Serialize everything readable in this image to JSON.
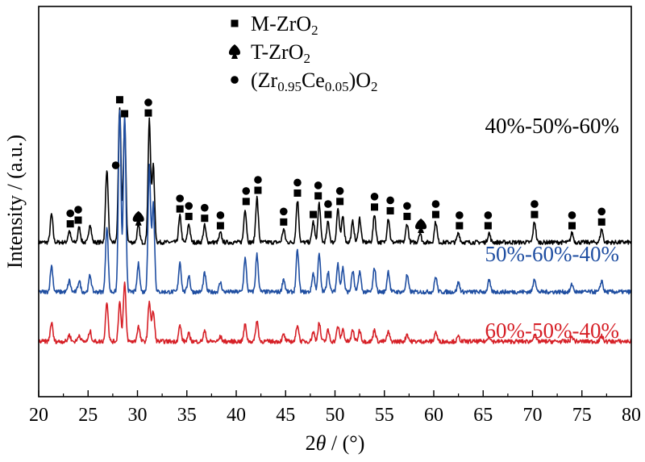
{
  "chart_data": {
    "type": "line",
    "title": "",
    "xlabel": "2θ / (°)",
    "ylabel": "Intensity / (a.u.)",
    "xlim": [
      20,
      80
    ],
    "x_ticks": [
      "20",
      "25",
      "30",
      "35",
      "40",
      "45",
      "50",
      "55",
      "60",
      "65",
      "70",
      "75",
      "80"
    ],
    "grid": false,
    "legend": {
      "position": "top-center",
      "entries": [
        {
          "marker": "square",
          "parts": [
            {
              "t": "M-ZrO",
              "s": "n"
            },
            {
              "t": "2",
              "s": "sub"
            }
          ]
        },
        {
          "marker": "spade",
          "parts": [
            {
              "t": "T-ZrO",
              "s": "n"
            },
            {
              "t": "2",
              "s": "sub"
            }
          ]
        },
        {
          "marker": "circle",
          "parts": [
            {
              "t": "(Zr",
              "s": "n"
            },
            {
              "t": "0.95",
              "s": "sub"
            },
            {
              "t": "Ce",
              "s": "n"
            },
            {
              "t": "0.05",
              "s": "sub"
            },
            {
              "t": ")O",
              "s": "n"
            },
            {
              "t": "2",
              "s": "sub"
            }
          ]
        }
      ]
    },
    "series": [
      {
        "name": "40%-50%-60%",
        "color": "#000000",
        "baseline": 0.53,
        "peaks": [
          [
            21.3,
            0.3
          ],
          [
            23.1,
            0.12
          ],
          [
            24.1,
            0.16
          ],
          [
            25.2,
            0.2
          ],
          [
            26.9,
            0.78
          ],
          [
            28.2,
            1.45
          ],
          [
            28.7,
            1.3
          ],
          [
            30.1,
            0.18
          ],
          [
            31.2,
            1.3
          ],
          [
            31.6,
            0.82
          ],
          [
            34.3,
            0.28
          ],
          [
            35.2,
            0.2
          ],
          [
            36.8,
            0.18
          ],
          [
            38.4,
            0.1
          ],
          [
            40.9,
            0.36
          ],
          [
            42.1,
            0.48
          ],
          [
            44.8,
            0.14
          ],
          [
            46.2,
            0.45
          ],
          [
            47.8,
            0.22
          ],
          [
            48.4,
            0.42
          ],
          [
            49.3,
            0.22
          ],
          [
            50.3,
            0.36
          ],
          [
            50.8,
            0.28
          ],
          [
            51.8,
            0.22
          ],
          [
            52.5,
            0.26
          ],
          [
            54.0,
            0.3
          ],
          [
            55.4,
            0.26
          ],
          [
            57.3,
            0.2
          ],
          [
            58.6,
            0.1
          ],
          [
            60.2,
            0.22
          ],
          [
            62.5,
            0.1
          ],
          [
            65.6,
            0.1
          ],
          [
            70.2,
            0.22
          ],
          [
            74.0,
            0.1
          ],
          [
            77.0,
            0.14
          ]
        ]
      },
      {
        "name": "50%-60%-40%",
        "color": "#1f4ea1",
        "baseline": 0.0,
        "peaks": [
          [
            21.3,
            0.28
          ],
          [
            23.1,
            0.12
          ],
          [
            24.1,
            0.12
          ],
          [
            25.2,
            0.18
          ],
          [
            26.9,
            0.7
          ],
          [
            28.2,
            1.95
          ],
          [
            28.7,
            1.88
          ],
          [
            30.1,
            0.3
          ],
          [
            31.2,
            1.35
          ],
          [
            31.6,
            0.95
          ],
          [
            34.3,
            0.32
          ],
          [
            35.2,
            0.18
          ],
          [
            36.8,
            0.2
          ],
          [
            38.4,
            0.1
          ],
          [
            40.9,
            0.36
          ],
          [
            42.1,
            0.4
          ],
          [
            44.8,
            0.14
          ],
          [
            46.2,
            0.44
          ],
          [
            47.8,
            0.2
          ],
          [
            48.4,
            0.4
          ],
          [
            49.3,
            0.22
          ],
          [
            50.3,
            0.3
          ],
          [
            50.8,
            0.26
          ],
          [
            51.8,
            0.22
          ],
          [
            52.5,
            0.22
          ],
          [
            54.0,
            0.26
          ],
          [
            55.4,
            0.22
          ],
          [
            57.3,
            0.18
          ],
          [
            60.2,
            0.16
          ],
          [
            62.5,
            0.1
          ],
          [
            65.6,
            0.12
          ],
          [
            70.2,
            0.15
          ],
          [
            74.0,
            0.08
          ],
          [
            77.0,
            0.12
          ]
        ]
      },
      {
        "name": "60%-50%-40%",
        "color": "#d61f26",
        "baseline": -0.53,
        "peaks": [
          [
            21.3,
            0.2
          ],
          [
            23.1,
            0.07
          ],
          [
            24.1,
            0.07
          ],
          [
            25.2,
            0.11
          ],
          [
            26.9,
            0.43
          ],
          [
            28.2,
            0.42
          ],
          [
            28.7,
            0.62
          ],
          [
            30.1,
            0.16
          ],
          [
            31.2,
            0.43
          ],
          [
            31.6,
            0.32
          ],
          [
            34.3,
            0.17
          ],
          [
            35.2,
            0.08
          ],
          [
            36.8,
            0.11
          ],
          [
            38.4,
            0.05
          ],
          [
            40.9,
            0.18
          ],
          [
            42.1,
            0.22
          ],
          [
            44.8,
            0.07
          ],
          [
            46.2,
            0.18
          ],
          [
            47.8,
            0.1
          ],
          [
            48.4,
            0.2
          ],
          [
            49.3,
            0.12
          ],
          [
            50.3,
            0.16
          ],
          [
            50.8,
            0.13
          ],
          [
            51.8,
            0.12
          ],
          [
            52.5,
            0.12
          ],
          [
            54.0,
            0.13
          ],
          [
            55.4,
            0.1
          ],
          [
            57.3,
            0.08
          ],
          [
            60.2,
            0.1
          ],
          [
            62.5,
            0.05
          ],
          [
            65.6,
            0.06
          ],
          [
            70.2,
            0.08
          ],
          [
            74.0,
            0.05
          ],
          [
            77.0,
            0.06
          ]
        ]
      }
    ],
    "annotations": [
      {
        "x": 23.2,
        "series": 0,
        "markers": [
          "square",
          "circle"
        ]
      },
      {
        "x": 24.0,
        "series": 0,
        "markers": [
          "square",
          "circle"
        ]
      },
      {
        "x": 27.8,
        "series": 0,
        "markers": [
          "circle"
        ]
      },
      {
        "x": 28.2,
        "series": 0,
        "markers": [
          "square"
        ]
      },
      {
        "x": 28.7,
        "series": 0,
        "markers": [
          "square"
        ]
      },
      {
        "x": 30.1,
        "series": 0,
        "markers": [
          "spade"
        ]
      },
      {
        "x": 31.1,
        "series": 0,
        "markers": [
          "square",
          "circle"
        ]
      },
      {
        "x": 34.3,
        "series": 0,
        "markers": [
          "square",
          "circle"
        ]
      },
      {
        "x": 35.2,
        "series": 0,
        "markers": [
          "square",
          "circle"
        ]
      },
      {
        "x": 36.8,
        "series": 0,
        "markers": [
          "square",
          "circle"
        ]
      },
      {
        "x": 38.4,
        "series": 0,
        "markers": [
          "square",
          "circle"
        ]
      },
      {
        "x": 41.0,
        "series": 0,
        "markers": [
          "square",
          "circle"
        ]
      },
      {
        "x": 42.2,
        "series": 0,
        "markers": [
          "square",
          "circle"
        ]
      },
      {
        "x": 44.8,
        "series": 0,
        "markers": [
          "square",
          "circle"
        ]
      },
      {
        "x": 46.2,
        "series": 0,
        "markers": [
          "square",
          "circle"
        ]
      },
      {
        "x": 47.8,
        "series": 0,
        "markers": [
          "square"
        ]
      },
      {
        "x": 48.3,
        "series": 0,
        "markers": [
          "square",
          "circle"
        ]
      },
      {
        "x": 49.3,
        "series": 0,
        "markers": [
          "square",
          "circle"
        ]
      },
      {
        "x": 50.5,
        "series": 0,
        "markers": [
          "square",
          "circle"
        ]
      },
      {
        "x": 54.0,
        "series": 0,
        "markers": [
          "square",
          "circle"
        ]
      },
      {
        "x": 55.6,
        "series": 0,
        "markers": [
          "square",
          "circle"
        ]
      },
      {
        "x": 57.3,
        "series": 0,
        "markers": [
          "square",
          "circle"
        ]
      },
      {
        "x": 58.7,
        "series": 0,
        "markers": [
          "spade"
        ]
      },
      {
        "x": 60.2,
        "series": 0,
        "markers": [
          "square",
          "circle"
        ]
      },
      {
        "x": 62.6,
        "series": 0,
        "markers": [
          "square",
          "circle"
        ]
      },
      {
        "x": 65.5,
        "series": 0,
        "markers": [
          "square",
          "circle"
        ]
      },
      {
        "x": 70.2,
        "series": 0,
        "markers": [
          "square",
          "circle"
        ]
      },
      {
        "x": 74.0,
        "series": 0,
        "markers": [
          "square",
          "circle"
        ]
      },
      {
        "x": 77.0,
        "series": 0,
        "markers": [
          "square",
          "circle"
        ]
      }
    ]
  }
}
